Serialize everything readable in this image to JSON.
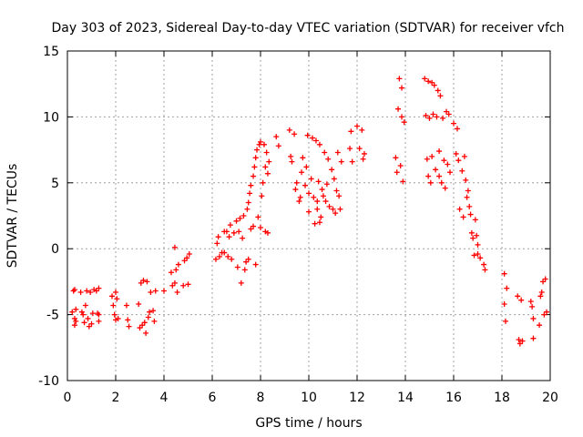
{
  "chart_data": {
    "type": "scatter",
    "title": "Day 303 of 2023, Sidereal Day-to-day VTEC variation (SDTVAR) for receiver vfch",
    "xlabel": "GPS time / hours",
    "ylabel": "SDTVAR / TECUs",
    "xlim": [
      0,
      20
    ],
    "ylim": [
      -10,
      15
    ],
    "xticks": [
      0,
      2,
      4,
      6,
      8,
      10,
      12,
      14,
      16,
      18,
      20
    ],
    "yticks": [
      -10,
      -5,
      0,
      5,
      10,
      15
    ],
    "grid": true,
    "marker": "+",
    "marker_color": "#ff0000",
    "series": [
      {
        "name": "SDTVAR",
        "points": [
          [
            0.25,
            -3.2
          ],
          [
            0.3,
            -3.1
          ],
          [
            0.2,
            -4.8
          ],
          [
            0.3,
            -5.3
          ],
          [
            0.3,
            -5.8
          ],
          [
            0.35,
            -4.6
          ],
          [
            0.35,
            -5.5
          ],
          [
            0.55,
            -3.3
          ],
          [
            0.6,
            -4.8
          ],
          [
            0.65,
            -5.0
          ],
          [
            0.7,
            -5.6
          ],
          [
            0.75,
            -4.3
          ],
          [
            0.8,
            -3.2
          ],
          [
            0.85,
            -5.3
          ],
          [
            0.9,
            -5.9
          ],
          [
            0.95,
            -3.3
          ],
          [
            1.0,
            -5.7
          ],
          [
            1.05,
            -4.9
          ],
          [
            1.1,
            -3.1
          ],
          [
            1.2,
            -3.2
          ],
          [
            1.25,
            -4.9
          ],
          [
            1.3,
            -5.5
          ],
          [
            1.3,
            -3.0
          ],
          [
            1.3,
            -5.0
          ],
          [
            1.85,
            -3.6
          ],
          [
            1.9,
            -4.3
          ],
          [
            1.95,
            -5.0
          ],
          [
            2.0,
            -3.3
          ],
          [
            2.0,
            -5.4
          ],
          [
            2.05,
            -3.8
          ],
          [
            2.1,
            -5.3
          ],
          [
            2.45,
            -4.3
          ],
          [
            2.5,
            -5.4
          ],
          [
            2.55,
            -5.9
          ],
          [
            2.95,
            -4.2
          ],
          [
            3.0,
            -6.0
          ],
          [
            3.05,
            -2.6
          ],
          [
            3.1,
            -5.8
          ],
          [
            3.15,
            -2.4
          ],
          [
            3.2,
            -5.6
          ],
          [
            3.25,
            -6.4
          ],
          [
            3.3,
            -2.5
          ],
          [
            3.35,
            -5.2
          ],
          [
            3.4,
            -4.8
          ],
          [
            3.45,
            -3.3
          ],
          [
            3.55,
            -4.7
          ],
          [
            3.6,
            -5.5
          ],
          [
            3.65,
            -3.2
          ],
          [
            4.0,
            -3.2
          ],
          [
            4.3,
            -1.8
          ],
          [
            4.35,
            -2.8
          ],
          [
            4.45,
            -2.6
          ],
          [
            4.5,
            -1.6
          ],
          [
            4.55,
            -3.3
          ],
          [
            4.6,
            -1.2
          ],
          [
            4.8,
            -2.8
          ],
          [
            4.85,
            -0.9
          ],
          [
            4.95,
            -0.7
          ],
          [
            5.0,
            -2.7
          ],
          [
            5.05,
            -0.4
          ],
          [
            4.45,
            0.1
          ],
          [
            6.15,
            -0.8
          ],
          [
            6.2,
            0.4
          ],
          [
            6.25,
            0.9
          ],
          [
            6.3,
            -0.6
          ],
          [
            6.4,
            -0.3
          ],
          [
            6.5,
            1.3
          ],
          [
            6.5,
            -0.3
          ],
          [
            6.6,
            1.3
          ],
          [
            6.65,
            -0.6
          ],
          [
            6.7,
            0.9
          ],
          [
            6.75,
            1.8
          ],
          [
            6.8,
            -0.8
          ],
          [
            6.9,
            1.2
          ],
          [
            7.0,
            2.1
          ],
          [
            7.05,
            -1.4
          ],
          [
            7.1,
            1.3
          ],
          [
            7.15,
            2.3
          ],
          [
            7.2,
            -2.6
          ],
          [
            7.25,
            0.8
          ],
          [
            7.3,
            2.5
          ],
          [
            7.35,
            -1.6
          ],
          [
            7.4,
            -1.0
          ],
          [
            7.45,
            3.0
          ],
          [
            7.5,
            -0.8
          ],
          [
            7.5,
            3.5
          ],
          [
            7.55,
            4.2
          ],
          [
            7.6,
            1.5
          ],
          [
            7.6,
            4.8
          ],
          [
            7.7,
            5.5
          ],
          [
            7.7,
            1.7
          ],
          [
            7.75,
            6.2
          ],
          [
            7.8,
            -1.2
          ],
          [
            7.8,
            6.9
          ],
          [
            7.85,
            7.5
          ],
          [
            7.9,
            2.4
          ],
          [
            7.95,
            7.9
          ],
          [
            8.0,
            8.1
          ],
          [
            8.0,
            1.6
          ],
          [
            8.05,
            4.0
          ],
          [
            8.1,
            5.0
          ],
          [
            8.15,
            7.9
          ],
          [
            8.2,
            6.2
          ],
          [
            8.2,
            1.3
          ],
          [
            8.25,
            7.3
          ],
          [
            8.3,
            5.7
          ],
          [
            8.3,
            1.2
          ],
          [
            8.35,
            6.6
          ],
          [
            8.65,
            8.5
          ],
          [
            8.75,
            7.8
          ],
          [
            9.2,
            9.0
          ],
          [
            9.25,
            7.0
          ],
          [
            9.3,
            6.6
          ],
          [
            9.4,
            8.7
          ],
          [
            9.45,
            4.5
          ],
          [
            9.5,
            5.0
          ],
          [
            9.6,
            3.6
          ],
          [
            9.65,
            3.9
          ],
          [
            9.7,
            5.8
          ],
          [
            9.75,
            6.9
          ],
          [
            9.85,
            4.8
          ],
          [
            9.9,
            6.2
          ],
          [
            9.95,
            8.6
          ],
          [
            10.0,
            4.2
          ],
          [
            10.0,
            2.8
          ],
          [
            10.1,
            5.3
          ],
          [
            10.15,
            8.4
          ],
          [
            10.2,
            3.9
          ],
          [
            10.25,
            1.9
          ],
          [
            10.3,
            8.2
          ],
          [
            10.35,
            3.0
          ],
          [
            10.4,
            5.1
          ],
          [
            10.45,
            7.9
          ],
          [
            10.5,
            2.4
          ],
          [
            10.55,
            4.5
          ],
          [
            10.6,
            4.0
          ],
          [
            10.65,
            7.3
          ],
          [
            10.7,
            3.6
          ],
          [
            10.75,
            4.9
          ],
          [
            10.8,
            6.8
          ],
          [
            10.85,
            3.2
          ],
          [
            10.95,
            6.0
          ],
          [
            11.0,
            3.0
          ],
          [
            11.05,
            5.3
          ],
          [
            11.1,
            2.7
          ],
          [
            11.15,
            4.4
          ],
          [
            11.2,
            7.3
          ],
          [
            11.25,
            4.0
          ],
          [
            11.3,
            3.0
          ],
          [
            11.35,
            6.6
          ],
          [
            10.35,
            3.6
          ],
          [
            10.45,
            2.0
          ],
          [
            11.7,
            7.6
          ],
          [
            11.75,
            8.9
          ],
          [
            11.8,
            6.6
          ],
          [
            12.0,
            9.3
          ],
          [
            12.1,
            7.6
          ],
          [
            12.2,
            9.0
          ],
          [
            12.25,
            6.8
          ],
          [
            12.3,
            7.2
          ],
          [
            13.6,
            6.9
          ],
          [
            13.65,
            5.8
          ],
          [
            13.7,
            10.6
          ],
          [
            13.75,
            12.9
          ],
          [
            13.8,
            6.3
          ],
          [
            13.85,
            10.0
          ],
          [
            13.85,
            12.2
          ],
          [
            13.9,
            5.1
          ],
          [
            13.95,
            9.6
          ],
          [
            14.8,
            12.9
          ],
          [
            14.85,
            10.1
          ],
          [
            14.9,
            6.8
          ],
          [
            14.95,
            5.5
          ],
          [
            14.95,
            12.7
          ],
          [
            15.0,
            9.9
          ],
          [
            15.05,
            5.0
          ],
          [
            15.1,
            12.6
          ],
          [
            15.1,
            7.0
          ],
          [
            15.15,
            10.2
          ],
          [
            15.2,
            12.4
          ],
          [
            15.25,
            6.0
          ],
          [
            15.3,
            10.0
          ],
          [
            15.35,
            12.0
          ],
          [
            15.4,
            7.4
          ],
          [
            15.4,
            5.5
          ],
          [
            15.45,
            11.6
          ],
          [
            15.5,
            5.0
          ],
          [
            15.55,
            9.9
          ],
          [
            15.6,
            6.7
          ],
          [
            15.65,
            4.6
          ],
          [
            15.7,
            10.4
          ],
          [
            15.75,
            6.4
          ],
          [
            15.8,
            10.2
          ],
          [
            15.85,
            5.8
          ],
          [
            16.0,
            9.5
          ],
          [
            16.1,
            7.2
          ],
          [
            16.15,
            9.1
          ],
          [
            16.2,
            6.7
          ],
          [
            16.25,
            3.0
          ],
          [
            16.35,
            5.9
          ],
          [
            16.4,
            2.4
          ],
          [
            16.45,
            7.0
          ],
          [
            16.5,
            5.2
          ],
          [
            16.55,
            3.9
          ],
          [
            16.6,
            4.4
          ],
          [
            16.65,
            3.2
          ],
          [
            16.7,
            2.6
          ],
          [
            16.75,
            1.2
          ],
          [
            16.8,
            0.8
          ],
          [
            16.85,
            -0.5
          ],
          [
            16.9,
            2.2
          ],
          [
            16.95,
            1.0
          ],
          [
            17.0,
            0.3
          ],
          [
            17.0,
            -0.4
          ],
          [
            17.1,
            -0.7
          ],
          [
            17.25,
            -1.2
          ],
          [
            17.3,
            -1.6
          ],
          [
            18.1,
            -1.9
          ],
          [
            18.1,
            -4.2
          ],
          [
            18.15,
            -5.5
          ],
          [
            18.2,
            -3.0
          ],
          [
            18.65,
            -3.6
          ],
          [
            18.7,
            -6.9
          ],
          [
            18.75,
            -7.2
          ],
          [
            18.8,
            -3.9
          ],
          [
            18.85,
            -7.0
          ],
          [
            19.2,
            -4.0
          ],
          [
            19.25,
            -4.4
          ],
          [
            19.3,
            -5.3
          ],
          [
            19.3,
            -6.8
          ],
          [
            19.55,
            -5.8
          ],
          [
            19.6,
            -3.6
          ],
          [
            19.65,
            -3.3
          ],
          [
            19.7,
            -2.5
          ],
          [
            19.75,
            -5.0
          ],
          [
            19.8,
            -2.3
          ],
          [
            19.85,
            -4.8
          ]
        ]
      }
    ]
  }
}
